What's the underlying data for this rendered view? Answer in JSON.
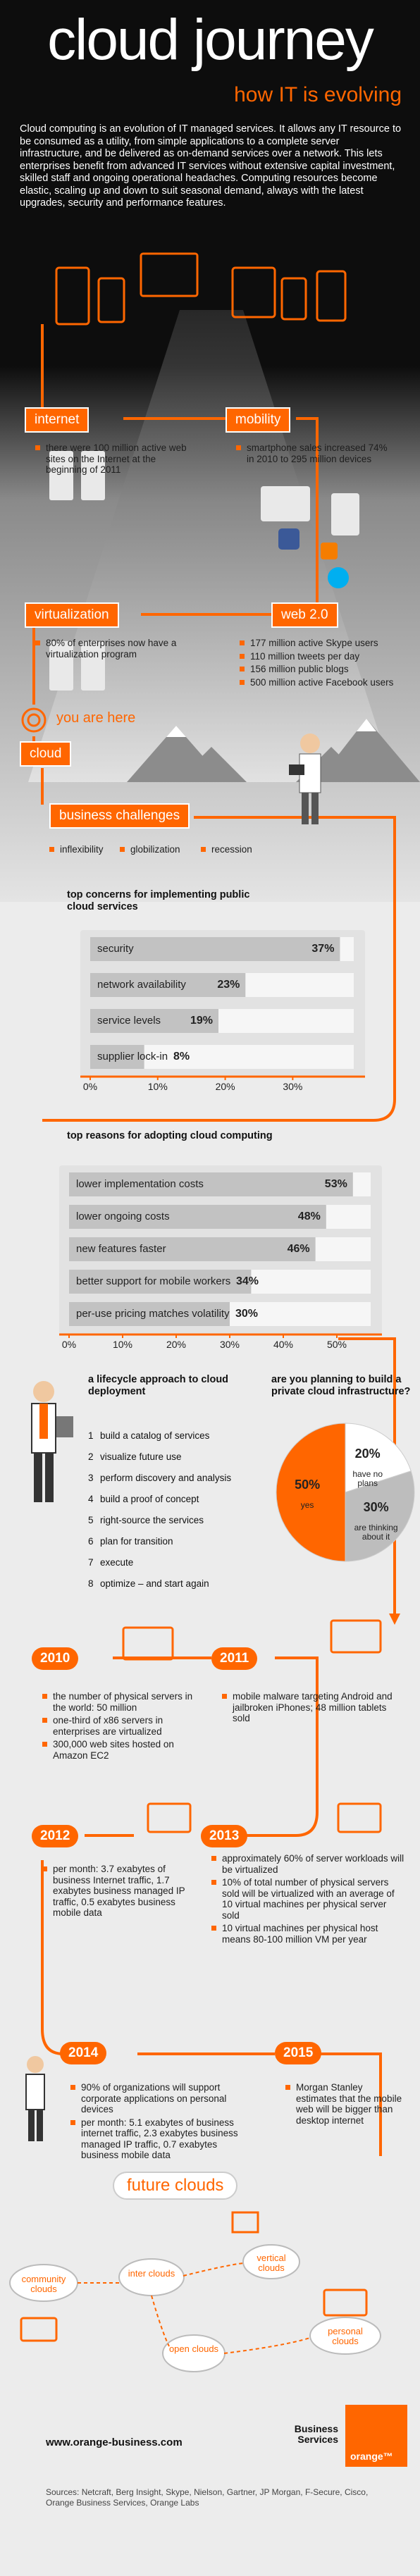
{
  "header": {
    "title": "cloud journey",
    "subtitle": "how IT is evolving",
    "intro": "Cloud computing is an evolution of IT managed services. It allows any IT resource to be consumed as a utility, from simple applications to a complete server infrastructure, and be delivered as on-demand services over a network. This lets enterprises benefit from advanced IT services without extensive capital investment, skilled staff and ongoing operational headaches. Computing resources become elastic, scaling up and down to suit seasonal demand, always with the latest upgrades, security and performance features."
  },
  "stages": [
    {
      "label": "internet",
      "items": [
        "there were 100 million active web sites on the Internet at the beginning of 2011"
      ]
    },
    {
      "label": "mobility",
      "items": [
        "smartphone sales increased 74% in 2010 to 295 million devices"
      ]
    },
    {
      "label": "virtualization",
      "items": [
        "80% of enterprises now have a virtualization program"
      ]
    },
    {
      "label": "web 2.0",
      "items": [
        "177 million active Skype users",
        "110 million tweets per day",
        "156 million public blogs",
        "500 million active Facebook users"
      ]
    }
  ],
  "you_are_here": "you are here",
  "cloud": "cloud",
  "business_challenges": {
    "label": "business challenges",
    "items": [
      "inflexibility",
      "globilization",
      "recession"
    ]
  },
  "chart_data": [
    {
      "type": "bar",
      "orientation": "horizontal",
      "title": "top concerns for implementing public cloud services",
      "categories": [
        "security",
        "network availability",
        "service levels",
        "supplier lock-in"
      ],
      "values": [
        37,
        23,
        19,
        8
      ],
      "value_labels": [
        "37%",
        "23%",
        "19%",
        "8%"
      ],
      "color": "#c2c2c2",
      "xlim": [
        0,
        38
      ],
      "xticks": [
        {
          "value": 0,
          "label": "0%"
        },
        {
          "value": 10,
          "label": "10%"
        },
        {
          "value": 20,
          "label": "20%"
        },
        {
          "value": 30,
          "label": "30%"
        }
      ]
    },
    {
      "type": "bar",
      "orientation": "horizontal",
      "title": "top reasons for adopting cloud computing",
      "categories": [
        "lower implementation costs",
        "lower ongoing costs",
        "new features faster",
        "better support for mobile workers",
        "per-use pricing matches volatility"
      ],
      "values": [
        53,
        48,
        46,
        34,
        30
      ],
      "value_labels": [
        "53%",
        "48%",
        "46%",
        "34%",
        "30%"
      ],
      "color": "#c2c2c2",
      "xlim": [
        0,
        55
      ],
      "xticks": [
        {
          "value": 0,
          "label": "0%"
        },
        {
          "value": 10,
          "label": "10%"
        },
        {
          "value": 20,
          "label": "20%"
        },
        {
          "value": 30,
          "label": "30%"
        },
        {
          "value": 40,
          "label": "40%"
        },
        {
          "value": 50,
          "label": "50%"
        }
      ]
    },
    {
      "type": "pie",
      "title": "are you planning to build a private cloud infrastructure?",
      "categories": [
        "have no plans",
        "are thinking about it",
        "yes"
      ],
      "values": [
        20,
        30,
        50
      ],
      "value_labels": [
        "20%",
        "30%",
        "50%"
      ],
      "colors": [
        "#ffffff",
        "#bdbdbd",
        "#ff6600"
      ]
    }
  ],
  "lifecycle": {
    "title": "a lifecycle approach to cloud deployment",
    "steps": [
      {
        "number": "1",
        "text": "build a catalog of services"
      },
      {
        "number": "2",
        "text": "visualize future use"
      },
      {
        "number": "3",
        "text": "perform discovery and analysis"
      },
      {
        "number": "4",
        "text": "build a proof of concept"
      },
      {
        "number": "5",
        "text": "right-source the services"
      },
      {
        "number": "6",
        "text": "plan for transition"
      },
      {
        "number": "7",
        "text": "execute"
      },
      {
        "number": "8",
        "text": "optimize – and start again"
      }
    ]
  },
  "timeline": [
    {
      "year": "2010",
      "items": [
        "the number of physical servers in the world: 50 million",
        "one-third of x86 servers in enterprises are virtualized",
        "300,000 web sites hosted on Amazon EC2"
      ]
    },
    {
      "year": "2011",
      "items": [
        "mobile malware targeting Android and jailbroken iPhones; 48 million tablets sold"
      ]
    },
    {
      "year": "2012",
      "items": [
        "per month: 3.7 exabytes of business Internet traffic, 1.7 exabytes business managed IP traffic, 0.5 exabytes business mobile data"
      ]
    },
    {
      "year": "2013",
      "items": [
        "approximately 60% of server workloads will be virtualized",
        "10% of total number of physical servers sold will be virtualized with an average of 10 virtual machines per physical server sold",
        "10 virtual machines per physical host means 80-100 million VM per year"
      ]
    },
    {
      "year": "2014",
      "items": [
        "90% of organizations will support corporate applications on personal devices",
        "per month: 5.1 exabytes of business internet traffic, 2.3 exabytes business managed IP traffic, 0.7 exabytes business mobile data"
      ]
    },
    {
      "year": "2015",
      "items": [
        "Morgan Stanley estimates that the mobile web will be bigger than desktop internet"
      ]
    }
  ],
  "future_clouds": {
    "title": "future clouds",
    "labels": [
      "community clouds",
      "inter clouds",
      "vertical clouds",
      "open clouds",
      "personal clouds"
    ]
  },
  "footer": {
    "url": "www.orange-business.com",
    "division": "Business Services",
    "brand": "orange™",
    "sources": "Sources: Netcraft, Berg Insight, Skype, Nielson, Gartner, JP Morgan, F-Secure, Cisco, Orange Business Services, Orange Labs"
  }
}
